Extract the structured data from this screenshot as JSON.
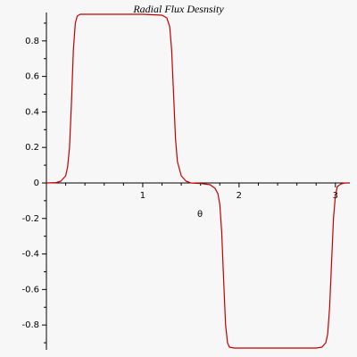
{
  "chart_data": {
    "type": "line",
    "title": "Radial Flux Desnsity",
    "x_label": "θ",
    "x": [
      0,
      0.1,
      0.15,
      0.2,
      0.22,
      0.24,
      0.26,
      0.28,
      0.3,
      0.32,
      0.35,
      0.4,
      0.6,
      0.8,
      1.0,
      1.2,
      1.25,
      1.28,
      1.3,
      1.32,
      1.34,
      1.36,
      1.4,
      1.45,
      1.5,
      1.6,
      1.7,
      1.75,
      1.78,
      1.8,
      1.82,
      1.84,
      1.86,
      1.88,
      1.9,
      1.95,
      2.0,
      2.4,
      2.8,
      2.86,
      2.9,
      2.92,
      2.94,
      2.96,
      2.98,
      3.0,
      3.02,
      3.06,
      3.1,
      3.14
    ],
    "series": [
      {
        "color": "#c00000",
        "values": [
          0,
          0.002,
          0.01,
          0.04,
          0.09,
          0.2,
          0.45,
          0.75,
          0.9,
          0.94,
          0.95,
          0.95,
          0.95,
          0.95,
          0.95,
          0.945,
          0.93,
          0.88,
          0.75,
          0.5,
          0.25,
          0.12,
          0.04,
          0.01,
          0,
          -0.003,
          -0.01,
          -0.03,
          -0.06,
          -0.12,
          -0.28,
          -0.55,
          -0.8,
          -0.9,
          -0.925,
          -0.93,
          -0.93,
          -0.93,
          -0.93,
          -0.925,
          -0.9,
          -0.85,
          -0.7,
          -0.45,
          -0.2,
          -0.07,
          -0.02,
          -0.005,
          0,
          0
        ]
      }
    ],
    "xlim": [
      0,
      3.15
    ],
    "ylim": [
      -0.94,
      0.96
    ],
    "xticks": [
      1,
      2,
      3
    ],
    "yticks": [
      -0.8,
      -0.6,
      -0.4,
      -0.2,
      0,
      0.2,
      0.4,
      0.6,
      0.8
    ],
    "yminorticks": [
      -0.9,
      -0.7,
      -0.5,
      -0.3,
      -0.1,
      0.1,
      0.3,
      0.5,
      0.7,
      0.9
    ],
    "xminorticks": [
      0.2,
      0.4,
      0.6,
      0.8,
      1.2,
      1.4,
      1.6,
      1.8,
      2.2,
      2.4,
      2.6,
      2.8,
      3.2
    ]
  }
}
